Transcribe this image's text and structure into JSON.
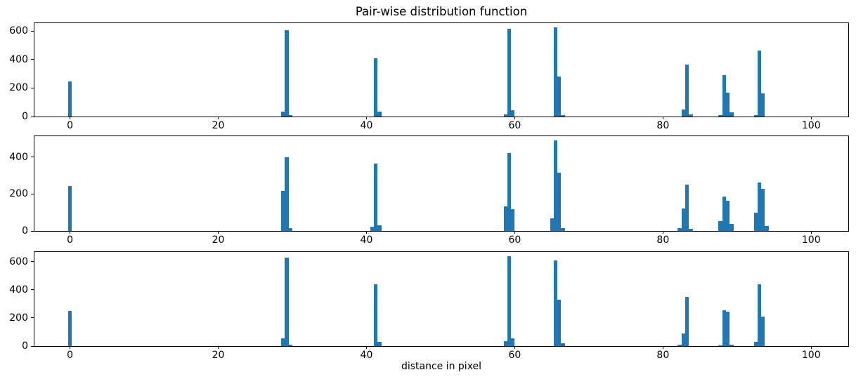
{
  "figure": {
    "title": "Pair-wise distribution function",
    "xlabel": "distance in pixel",
    "bar_color": "#1f77b4",
    "background_color": "#ffffff",
    "axis_color": "#000000"
  },
  "chart_data": [
    {
      "type": "bar",
      "subplot": "top",
      "xlim": [
        -4.8,
        105.0
      ],
      "ylim": [
        0,
        656
      ],
      "xticks": [
        0,
        20,
        40,
        60,
        80,
        100
      ],
      "yticks": [
        0,
        200,
        400,
        600
      ],
      "bar_width": 0.5,
      "grid": false,
      "legend": null,
      "bars": [
        [
          0,
          247
        ],
        [
          28.75,
          35
        ],
        [
          29.25,
          606
        ],
        [
          29.75,
          12
        ],
        [
          41.25,
          409
        ],
        [
          41.75,
          35
        ],
        [
          58.75,
          16
        ],
        [
          59.25,
          619
        ],
        [
          59.75,
          45
        ],
        [
          65.5,
          625
        ],
        [
          66.0,
          279
        ],
        [
          66.5,
          11
        ],
        [
          82.75,
          49
        ],
        [
          83.25,
          364
        ],
        [
          83.75,
          16
        ],
        [
          87.75,
          8
        ],
        [
          88.25,
          290
        ],
        [
          88.75,
          170
        ],
        [
          89.25,
          30
        ],
        [
          92.5,
          12
        ],
        [
          93.0,
          465
        ],
        [
          93.5,
          165
        ]
      ]
    },
    {
      "type": "bar",
      "subplot": "middle",
      "xlim": [
        -4.8,
        105.0
      ],
      "ylim": [
        0,
        512
      ],
      "xticks": [
        0,
        20,
        40,
        60,
        80,
        100
      ],
      "yticks": [
        0,
        200,
        400
      ],
      "bar_width": 0.5,
      "grid": false,
      "legend": null,
      "bars": [
        [
          0,
          243
        ],
        [
          28.75,
          218
        ],
        [
          29.25,
          399
        ],
        [
          29.75,
          16
        ],
        [
          40.75,
          21
        ],
        [
          41.25,
          365
        ],
        [
          41.75,
          31
        ],
        [
          58.75,
          133
        ],
        [
          59.25,
          420
        ],
        [
          59.75,
          118
        ],
        [
          65.0,
          67
        ],
        [
          65.5,
          488
        ],
        [
          66.0,
          316
        ],
        [
          66.5,
          16
        ],
        [
          82.25,
          15
        ],
        [
          82.75,
          120
        ],
        [
          83.25,
          250
        ],
        [
          83.75,
          12
        ],
        [
          87.75,
          54
        ],
        [
          88.25,
          185
        ],
        [
          88.75,
          165
        ],
        [
          89.25,
          39
        ],
        [
          92.5,
          100
        ],
        [
          93.0,
          260
        ],
        [
          93.5,
          228
        ],
        [
          94.0,
          25
        ]
      ]
    },
    {
      "type": "bar",
      "subplot": "bottom",
      "xlim": [
        -4.8,
        105.0
      ],
      "ylim": [
        0,
        669
      ],
      "xticks": [
        0,
        20,
        40,
        60,
        80,
        100
      ],
      "yticks": [
        0,
        200,
        400,
        600
      ],
      "bar_width": 0.5,
      "grid": false,
      "legend": null,
      "bars": [
        [
          0,
          250
        ],
        [
          28.75,
          55
        ],
        [
          29.25,
          629
        ],
        [
          29.75,
          11
        ],
        [
          41.25,
          441
        ],
        [
          41.75,
          28
        ],
        [
          58.75,
          35
        ],
        [
          59.25,
          637
        ],
        [
          59.75,
          55
        ],
        [
          65.5,
          610
        ],
        [
          66.0,
          332
        ],
        [
          66.5,
          20
        ],
        [
          82.25,
          10
        ],
        [
          82.75,
          90
        ],
        [
          83.25,
          352
        ],
        [
          87.75,
          7
        ],
        [
          88.25,
          253
        ],
        [
          88.75,
          243
        ],
        [
          89.25,
          10
        ],
        [
          92.5,
          30
        ],
        [
          93.0,
          438
        ],
        [
          93.5,
          212
        ]
      ]
    }
  ]
}
